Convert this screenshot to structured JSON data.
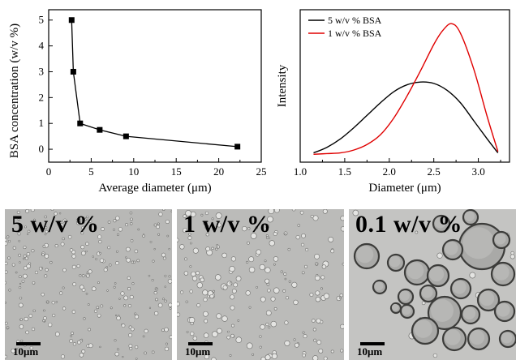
{
  "chart_data": [
    {
      "type": "line",
      "title": "",
      "xlabel": "Average diameter (μm)",
      "ylabel": "BSA concentration (w/v %)",
      "xlim": [
        0,
        25
      ],
      "ylim": [
        -0.5,
        5.4
      ],
      "xticks": [
        "0",
        "5",
        "10",
        "15",
        "20",
        "25"
      ],
      "yticks": [
        "0",
        "1",
        "2",
        "3",
        "4",
        "5"
      ],
      "marker": "square",
      "series": [
        {
          "x": [
            2.7,
            2.9,
            3.7,
            6.0,
            9.1,
            22.2
          ],
          "y": [
            5.0,
            3.0,
            1.0,
            0.75,
            0.5,
            0.1
          ],
          "color": "#000000"
        }
      ]
    },
    {
      "type": "line",
      "title": "",
      "xlabel": "Diameter (μm)",
      "ylabel": "Intensity",
      "xlim": [
        1.0,
        3.35
      ],
      "xticks": [
        "1.0",
        "1.5",
        "2.0",
        "2.5",
        "3.0"
      ],
      "legend_position": "top-left",
      "series": [
        {
          "name": "5 w/v % BSA",
          "color": "#000000",
          "x": [
            1.15,
            1.3,
            1.45,
            1.6,
            1.75,
            1.9,
            2.05,
            2.2,
            2.35,
            2.5,
            2.65,
            2.8,
            2.95,
            3.1,
            3.22
          ],
          "y": [
            0.02,
            0.06,
            0.12,
            0.2,
            0.29,
            0.38,
            0.46,
            0.51,
            0.53,
            0.52,
            0.47,
            0.38,
            0.25,
            0.12,
            0.02
          ]
        },
        {
          "name": "1 w/v % BSA",
          "color": "#e00000",
          "x": [
            1.15,
            1.3,
            1.45,
            1.6,
            1.75,
            1.9,
            2.05,
            2.2,
            2.35,
            2.5,
            2.6,
            2.7,
            2.8,
            2.95,
            3.1,
            3.22
          ],
          "y": [
            0.01,
            0.015,
            0.02,
            0.04,
            0.08,
            0.15,
            0.27,
            0.43,
            0.61,
            0.8,
            0.9,
            0.95,
            0.88,
            0.62,
            0.28,
            0.03
          ]
        }
      ]
    }
  ],
  "micrographs": [
    {
      "label": "5 w/v %",
      "scale_text": "10μm"
    },
    {
      "label": "1 w/v %",
      "scale_text": "10μm"
    },
    {
      "label": "0.1 w/v %",
      "scale_text": "10μm"
    }
  ]
}
